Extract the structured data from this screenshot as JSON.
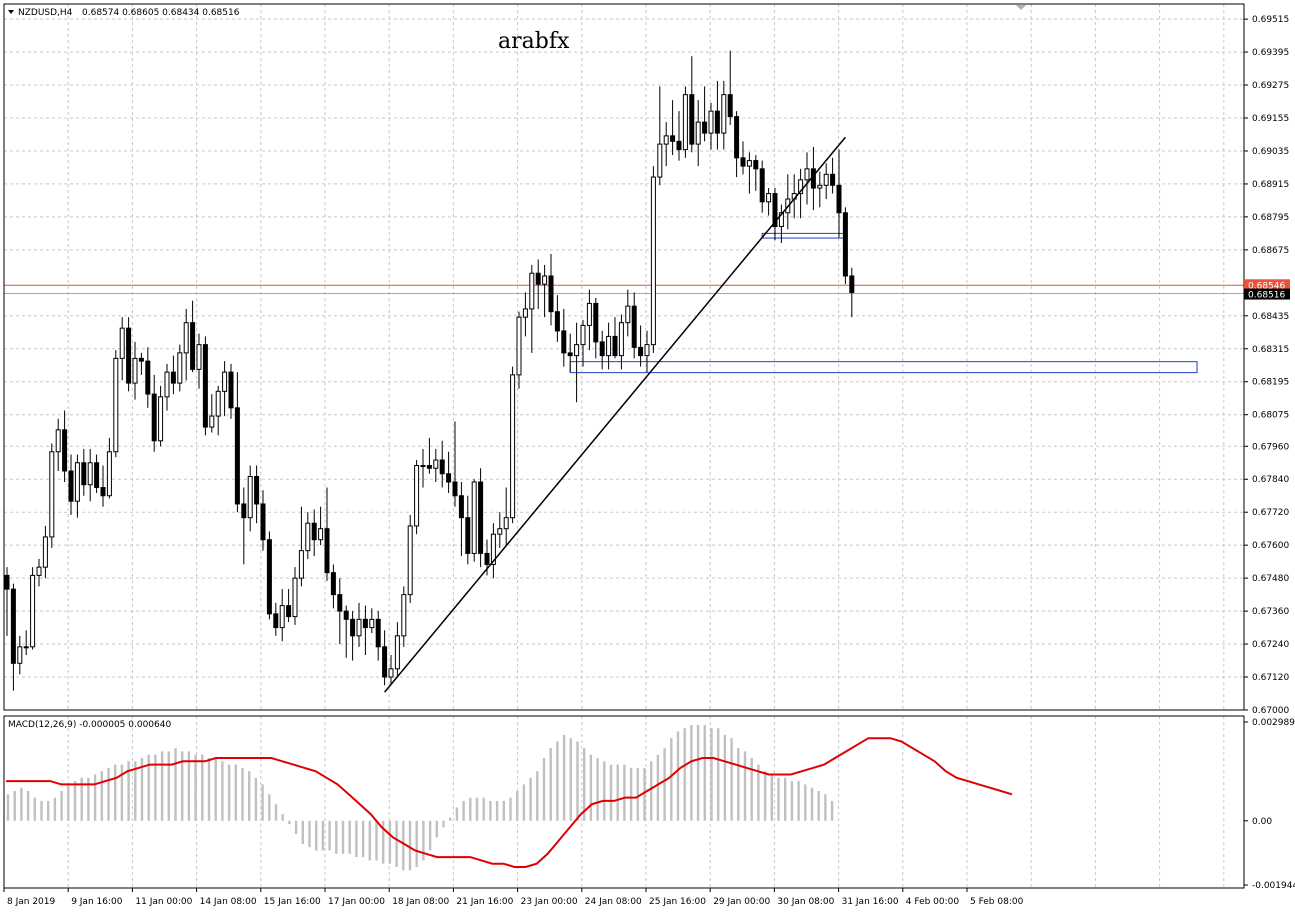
{
  "header": {
    "symbol_label": "NZDUSD,H4",
    "ohlc_values": "0.68574 0.68605 0.68434 0.68516",
    "watermark": "arabfx"
  },
  "indicator": {
    "label": "MACD(12,26,9) -0.000005 0.000640"
  },
  "colors": {
    "background": "#ffffff",
    "grid": "#c8c8c8",
    "bull_candle": "#ffffff",
    "bear_candle": "#000000",
    "trendline": "#000000",
    "zone_border": "#1f3fbf",
    "ask_line": "#e8533a",
    "bid_line": "#a9a9a9",
    "macd_histogram": "#c0c0c0",
    "macd_signal": "#e00000"
  },
  "price_axis": {
    "ticks": [
      "0.69515",
      "0.69395",
      "0.69275",
      "0.69155",
      "0.69035",
      "0.68915",
      "0.68795",
      "0.68675",
      "0.68435",
      "0.68315",
      "0.68195",
      "0.68075",
      "0.67960",
      "0.67840",
      "0.67720",
      "0.67600",
      "0.67480",
      "0.67360",
      "0.67240",
      "0.67120",
      "0.67000"
    ],
    "ask_tag": "0.68546",
    "bid_tag": "0.68516"
  },
  "macd_axis": {
    "ticks": [
      "0.002989",
      "0.00",
      "-0.001944"
    ]
  },
  "time_axis": {
    "labels": [
      "8 Jan 2019",
      "9 Jan 16:00",
      "11 Jan 00:00",
      "14 Jan 08:00",
      "15 Jan 16:00",
      "17 Jan 00:00",
      "18 Jan 08:00",
      "21 Jan 16:00",
      "23 Jan 00:00",
      "24 Jan 08:00",
      "25 Jan 16:00",
      "29 Jan 00:00",
      "30 Jan 08:00",
      "31 Jan 16:00",
      "4 Feb 00:00",
      "5 Feb 08:00"
    ]
  },
  "chart_data": {
    "type": "candlestick",
    "symbol": "NZDUSD",
    "timeframe": "H4",
    "ylim": [
      0.67,
      0.6957
    ],
    "current_ask": 0.68546,
    "current_bid": 0.68516,
    "candles": [
      [
        0.6749,
        0.6752,
        0.6727,
        0.6744
      ],
      [
        0.6744,
        0.6746,
        0.6707,
        0.6717
      ],
      [
        0.6717,
        0.6727,
        0.6713,
        0.6723
      ],
      [
        0.6723,
        0.6729,
        0.672,
        0.6723
      ],
      [
        0.6723,
        0.6752,
        0.6722,
        0.6749
      ],
      [
        0.6749,
        0.6755,
        0.6745,
        0.6752
      ],
      [
        0.6752,
        0.6767,
        0.6748,
        0.6763
      ],
      [
        0.6763,
        0.6797,
        0.6759,
        0.6794
      ],
      [
        0.6794,
        0.6806,
        0.6787,
        0.6802
      ],
      [
        0.6802,
        0.6809,
        0.6783,
        0.6787
      ],
      [
        0.6787,
        0.6793,
        0.6771,
        0.6776
      ],
      [
        0.6776,
        0.6793,
        0.677,
        0.679
      ],
      [
        0.679,
        0.6795,
        0.6778,
        0.6782
      ],
      [
        0.6782,
        0.6795,
        0.6776,
        0.679
      ],
      [
        0.679,
        0.6793,
        0.6779,
        0.6781
      ],
      [
        0.6781,
        0.6789,
        0.6774,
        0.6778
      ],
      [
        0.6778,
        0.6799,
        0.6777,
        0.6794
      ],
      [
        0.6794,
        0.6831,
        0.6792,
        0.6828
      ],
      [
        0.6828,
        0.6843,
        0.682,
        0.6839
      ],
      [
        0.6839,
        0.6843,
        0.6816,
        0.6819
      ],
      [
        0.6819,
        0.6834,
        0.6813,
        0.6828
      ],
      [
        0.6828,
        0.683,
        0.6822,
        0.6827
      ],
      [
        0.6827,
        0.6832,
        0.681,
        0.6815
      ],
      [
        0.6815,
        0.6822,
        0.6794,
        0.6798
      ],
      [
        0.6798,
        0.6818,
        0.6796,
        0.6814
      ],
      [
        0.6814,
        0.6826,
        0.6809,
        0.6823
      ],
      [
        0.6823,
        0.6829,
        0.6815,
        0.6819
      ],
      [
        0.6819,
        0.6833,
        0.6816,
        0.683
      ],
      [
        0.683,
        0.6846,
        0.682,
        0.6841
      ],
      [
        0.6841,
        0.6849,
        0.6823,
        0.6824
      ],
      [
        0.6824,
        0.6837,
        0.6817,
        0.6833
      ],
      [
        0.6833,
        0.6836,
        0.68,
        0.6803
      ],
      [
        0.6803,
        0.6815,
        0.6801,
        0.6807
      ],
      [
        0.6807,
        0.6818,
        0.68,
        0.6816
      ],
      [
        0.6816,
        0.6827,
        0.6807,
        0.6823
      ],
      [
        0.6823,
        0.6826,
        0.6806,
        0.681
      ],
      [
        0.681,
        0.6823,
        0.6772,
        0.6775
      ],
      [
        0.6775,
        0.6781,
        0.6753,
        0.677
      ],
      [
        0.677,
        0.6789,
        0.6765,
        0.6785
      ],
      [
        0.6785,
        0.6789,
        0.6768,
        0.6775
      ],
      [
        0.6775,
        0.678,
        0.6758,
        0.6762
      ],
      [
        0.6762,
        0.6765,
        0.6733,
        0.6735
      ],
      [
        0.6735,
        0.6739,
        0.6727,
        0.673
      ],
      [
        0.673,
        0.6744,
        0.6725,
        0.6738
      ],
      [
        0.6738,
        0.6744,
        0.6732,
        0.6734
      ],
      [
        0.6734,
        0.6752,
        0.6731,
        0.6748
      ],
      [
        0.6748,
        0.6774,
        0.6745,
        0.6758
      ],
      [
        0.6758,
        0.6772,
        0.6755,
        0.6768
      ],
      [
        0.6768,
        0.6773,
        0.6756,
        0.6762
      ],
      [
        0.6762,
        0.6774,
        0.676,
        0.6766
      ],
      [
        0.6766,
        0.6781,
        0.6747,
        0.675
      ],
      [
        0.675,
        0.6753,
        0.6737,
        0.6742
      ],
      [
        0.6742,
        0.6748,
        0.6724,
        0.6736
      ],
      [
        0.6736,
        0.6738,
        0.6719,
        0.6733
      ],
      [
        0.6733,
        0.6736,
        0.6718,
        0.6727
      ],
      [
        0.6727,
        0.6739,
        0.6723,
        0.6733
      ],
      [
        0.6733,
        0.6738,
        0.672,
        0.673
      ],
      [
        0.673,
        0.6737,
        0.6728,
        0.6733
      ],
      [
        0.6733,
        0.6736,
        0.6718,
        0.6723
      ],
      [
        0.6723,
        0.6729,
        0.6709,
        0.6712
      ],
      [
        0.6712,
        0.672,
        0.6709,
        0.6715
      ],
      [
        0.6715,
        0.6732,
        0.6712,
        0.6727
      ],
      [
        0.6727,
        0.6745,
        0.6723,
        0.6742
      ],
      [
        0.6742,
        0.6771,
        0.6739,
        0.6767
      ],
      [
        0.6767,
        0.6791,
        0.6764,
        0.6789
      ],
      [
        0.6789,
        0.6795,
        0.6781,
        0.6789
      ],
      [
        0.6789,
        0.6799,
        0.6786,
        0.6788
      ],
      [
        0.6788,
        0.6795,
        0.6783,
        0.6791
      ],
      [
        0.6791,
        0.6798,
        0.6781,
        0.6786
      ],
      [
        0.6786,
        0.6794,
        0.6779,
        0.6783
      ],
      [
        0.6783,
        0.6805,
        0.6774,
        0.6778
      ],
      [
        0.6778,
        0.6783,
        0.6756,
        0.677
      ],
      [
        0.677,
        0.6778,
        0.6753,
        0.6757
      ],
      [
        0.6757,
        0.6784,
        0.6754,
        0.6783
      ],
      [
        0.6783,
        0.6788,
        0.6752,
        0.6757
      ],
      [
        0.6757,
        0.6762,
        0.6749,
        0.6753
      ],
      [
        0.6753,
        0.6768,
        0.6748,
        0.6764
      ],
      [
        0.6764,
        0.6772,
        0.6759,
        0.6766
      ],
      [
        0.6766,
        0.6781,
        0.676,
        0.677
      ],
      [
        0.677,
        0.6825,
        0.6768,
        0.6822
      ],
      [
        0.6822,
        0.6845,
        0.6817,
        0.6843
      ],
      [
        0.6843,
        0.6852,
        0.6836,
        0.6846
      ],
      [
        0.6846,
        0.6862,
        0.683,
        0.6859
      ],
      [
        0.6859,
        0.6864,
        0.6846,
        0.6855
      ],
      [
        0.6855,
        0.6862,
        0.6843,
        0.6858
      ],
      [
        0.6858,
        0.6866,
        0.684,
        0.6845
      ],
      [
        0.6845,
        0.6851,
        0.6834,
        0.6838
      ],
      [
        0.6838,
        0.6846,
        0.6825,
        0.683
      ],
      [
        0.683,
        0.6837,
        0.6823,
        0.6829
      ],
      [
        0.6829,
        0.6841,
        0.6812,
        0.6833
      ],
      [
        0.6833,
        0.6842,
        0.6825,
        0.684
      ],
      [
        0.684,
        0.6853,
        0.6831,
        0.6848
      ],
      [
        0.6848,
        0.685,
        0.6828,
        0.6834
      ],
      [
        0.6834,
        0.6838,
        0.6824,
        0.6829
      ],
      [
        0.6829,
        0.6841,
        0.6824,
        0.6836
      ],
      [
        0.6836,
        0.6843,
        0.6828,
        0.6829
      ],
      [
        0.6829,
        0.6844,
        0.6824,
        0.6841
      ],
      [
        0.6841,
        0.6853,
        0.6836,
        0.6847
      ],
      [
        0.6847,
        0.6852,
        0.6828,
        0.6832
      ],
      [
        0.6832,
        0.684,
        0.6825,
        0.6829
      ],
      [
        0.6829,
        0.6838,
        0.6823,
        0.6833
      ],
      [
        0.6833,
        0.6898,
        0.683,
        0.6894
      ],
      [
        0.6894,
        0.6927,
        0.6891,
        0.6906
      ],
      [
        0.6906,
        0.6914,
        0.6898,
        0.6909
      ],
      [
        0.6909,
        0.6922,
        0.6902,
        0.6907
      ],
      [
        0.6907,
        0.6918,
        0.69,
        0.6904
      ],
      [
        0.6904,
        0.6927,
        0.6901,
        0.6924
      ],
      [
        0.6924,
        0.6938,
        0.6903,
        0.6906
      ],
      [
        0.6906,
        0.6922,
        0.6898,
        0.6914
      ],
      [
        0.6914,
        0.6927,
        0.6907,
        0.691
      ],
      [
        0.691,
        0.6921,
        0.6904,
        0.6918
      ],
      [
        0.6918,
        0.6929,
        0.6904,
        0.691
      ],
      [
        0.691,
        0.6929,
        0.6904,
        0.6924
      ],
      [
        0.6924,
        0.694,
        0.6913,
        0.6916
      ],
      [
        0.6916,
        0.6918,
        0.6894,
        0.6901
      ],
      [
        0.6901,
        0.6907,
        0.6895,
        0.6898
      ],
      [
        0.6898,
        0.6903,
        0.6888,
        0.69
      ],
      [
        0.69,
        0.6902,
        0.6889,
        0.6897
      ],
      [
        0.6897,
        0.69,
        0.6881,
        0.6885
      ],
      [
        0.6885,
        0.689,
        0.688,
        0.6888
      ],
      [
        0.6888,
        0.689,
        0.6871,
        0.6876
      ],
      [
        0.6876,
        0.6884,
        0.687,
        0.6881
      ],
      [
        0.6881,
        0.6895,
        0.6875,
        0.6886
      ],
      [
        0.6886,
        0.6895,
        0.6879,
        0.6888
      ],
      [
        0.6888,
        0.6897,
        0.6879,
        0.6893
      ],
      [
        0.6893,
        0.6903,
        0.6884,
        0.6897
      ],
      [
        0.6897,
        0.6905,
        0.6882,
        0.689
      ],
      [
        0.689,
        0.6896,
        0.6883,
        0.6891
      ],
      [
        0.6891,
        0.6899,
        0.6886,
        0.6895
      ],
      [
        0.6895,
        0.6901,
        0.6888,
        0.6891
      ],
      [
        0.6891,
        0.6904,
        0.6872,
        0.6881
      ],
      [
        0.6881,
        0.6883,
        0.6855,
        0.6858
      ],
      [
        0.6858,
        0.6861,
        0.6843,
        0.6852
      ]
    ],
    "trendlines": [
      {
        "from": {
          "bar": 59,
          "price": 0.67065
        },
        "to": {
          "bar": 131,
          "price": 0.69085
        }
      }
    ],
    "zones": [
      {
        "bar_from": 88,
        "bar_to": 195,
        "price_high": 0.68268,
        "price_low": 0.68228
      },
      {
        "bar_from": 118,
        "bar_to": 131,
        "price_high": 0.68735,
        "price_low": 0.68718
      }
    ],
    "macd": {
      "histogram": [
        0.0008,
        0.0009,
        0.001,
        0.0009,
        0.0007,
        0.0006,
        0.0006,
        0.0007,
        0.0009,
        0.0011,
        0.0012,
        0.0013,
        0.0013,
        0.0014,
        0.0015,
        0.0016,
        0.0017,
        0.0017,
        0.0018,
        0.0018,
        0.0019,
        0.002,
        0.002,
        0.0021,
        0.0021,
        0.0022,
        0.0021,
        0.0021,
        0.002,
        0.002,
        0.0019,
        0.0019,
        0.0018,
        0.0017,
        0.0017,
        0.0016,
        0.0015,
        0.0013,
        0.0011,
        0.0008,
        0.0005,
        0.0002,
        -0.0001,
        -0.0004,
        -0.0007,
        -0.0008,
        -0.0009,
        -0.0009,
        -0.0009,
        -0.001,
        -0.001,
        -0.001,
        -0.0011,
        -0.0011,
        -0.0012,
        -0.0012,
        -0.0013,
        -0.0013,
        -0.0014,
        -0.0015,
        -0.0015,
        -0.0014,
        -0.0012,
        -0.0009,
        -0.0005,
        -0.0002,
        0.0001,
        0.0004,
        0.0006,
        0.0007,
        0.0007,
        0.0007,
        0.0006,
        0.0006,
        0.0006,
        0.0007,
        0.0009,
        0.0011,
        0.0013,
        0.0015,
        0.0019,
        0.0022,
        0.0024,
        0.0026,
        0.0025,
        0.0024,
        0.0022,
        0.002,
        0.0019,
        0.0018,
        0.0017,
        0.0017,
        0.0017,
        0.0016,
        0.0016,
        0.0016,
        0.0018,
        0.002,
        0.0022,
        0.0025,
        0.0027,
        0.0028,
        0.0029,
        0.0029,
        0.0029,
        0.0028,
        0.0028,
        0.0026,
        0.0025,
        0.0022,
        0.0021,
        0.0019,
        0.0017,
        0.0015,
        0.0014,
        0.0013,
        0.0013,
        0.0012,
        0.0012,
        0.0011,
        0.001,
        0.0009,
        0.0008,
        0.0006
      ],
      "signal": [
        0.0012,
        0.0012,
        0.0012,
        0.0012,
        0.0012,
        0.0011,
        0.0011,
        0.0011,
        0.0011,
        0.0012,
        0.0013,
        0.0015,
        0.0016,
        0.0017,
        0.0017,
        0.0017,
        0.0018,
        0.0018,
        0.0018,
        0.0019,
        0.0019,
        0.0019,
        0.0019,
        0.0019,
        0.0019,
        0.0018,
        0.0017,
        0.0016,
        0.0015,
        0.0013,
        0.0011,
        0.0008,
        0.0005,
        0.0002,
        -0.0002,
        -0.0005,
        -0.0007,
        -0.0009,
        -0.001,
        -0.0011,
        -0.0011,
        -0.0011,
        -0.0011,
        -0.0012,
        -0.0013,
        -0.0013,
        -0.0014,
        -0.0014,
        -0.0013,
        -0.001,
        -0.0006,
        -0.0002,
        0.0002,
        0.0005,
        0.0006,
        0.0006,
        0.0007,
        0.0007,
        0.0009,
        0.0011,
        0.0013,
        0.0016,
        0.0018,
        0.0019,
        0.0019,
        0.0018,
        0.0017,
        0.0016,
        0.0015,
        0.0014,
        0.0014,
        0.0014,
        0.0015,
        0.0016,
        0.0017,
        0.0019,
        0.0021,
        0.0023,
        0.0025,
        0.0025,
        0.0025,
        0.0024,
        0.0022,
        0.002,
        0.0018,
        0.0015,
        0.0013,
        0.0012,
        0.0011,
        0.001,
        0.0009,
        0.0008
      ]
    }
  }
}
